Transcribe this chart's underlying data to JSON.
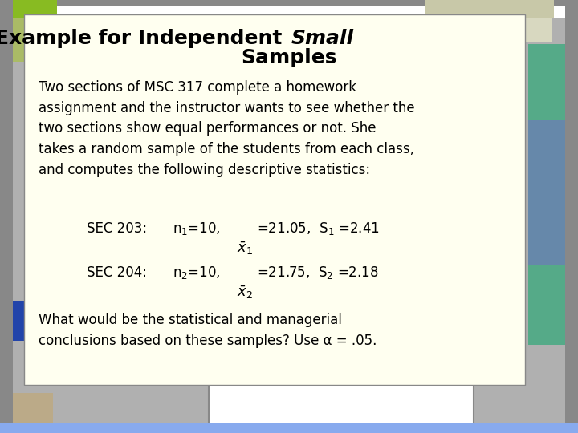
{
  "title_line1": "Example for Independent ",
  "title_italic": "Small",
  "title_line2": "Samples",
  "body_text": "Two sections of MSC 317 complete a homework\nassignment and the instructor wants to see whether the\ntwo sections show equal performances or not. She\ntakes a random sample of the students from each class,\nand computes the following descriptive statistics:",
  "conclusion": "What would be the statistical and managerial\nconclusions based on these samples? Use α = .05.",
  "slide_bg": "#b0b0b0",
  "content_bg": "#fffff0",
  "white_bg": "#ffffff",
  "accent_green": "#88bb22",
  "accent_green2": "#aabb66",
  "accent_tan": "#bbaa88",
  "accent_gray": "#888888",
  "accent_teal": "#55aa88",
  "accent_blue_right": "#6688aa",
  "accent_blue_strip": "#2244aa",
  "accent_bottom_blue": "#88aaee",
  "title_fontsize": 18,
  "body_fontsize": 12,
  "stats_fontsize": 12
}
